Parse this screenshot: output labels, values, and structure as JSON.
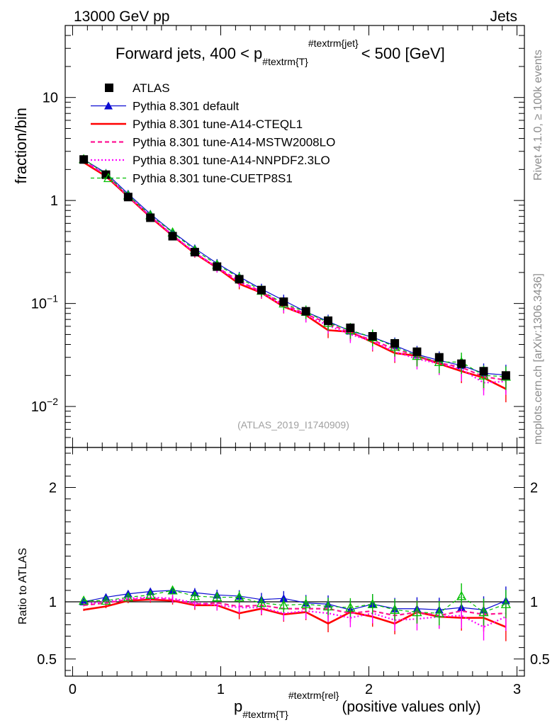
{
  "header": {
    "energy": "13000 GeV pp",
    "process": "Jets"
  },
  "side_labels": {
    "rivet": "Rivet 4.1.0, ≥ 100k events",
    "mcplots": "mcplots.cern.ch [arXiv:1306.3436]"
  },
  "chart_data": {
    "type": "line",
    "title_parts": {
      "prefix": "Forward jets, 400 < p",
      "sub": "#textrm{T}",
      "sup": "#textrm{jet}",
      "suffix": "< 500 [GeV]"
    },
    "watermark": "(ATLAS_2019_I1740909)",
    "ylabel": "fraction/bin",
    "ratio_ylabel": "Ratio to ATLAS",
    "xlabel_parts": {
      "p": "p",
      "sub": "#textrm{T}",
      "sup": "#textrm{rel}",
      "suffix": "(positive values only)"
    },
    "xlim": [
      -0.05,
      3.05
    ],
    "ylim_log": [
      0.004,
      50
    ],
    "ratio_ylim": [
      0.35,
      2.35
    ],
    "x_ticks": [
      {
        "v": 0,
        "label": "0"
      },
      {
        "v": 1,
        "label": "1"
      },
      {
        "v": 2,
        "label": "2"
      },
      {
        "v": 3,
        "label": "3"
      }
    ],
    "y_ticks": [
      {
        "v": 0.01,
        "base": "10",
        "exp": "−2"
      },
      {
        "v": 0.1,
        "base": "10",
        "exp": "−1"
      },
      {
        "v": 1,
        "base": "1",
        "exp": ""
      },
      {
        "v": 10,
        "base": "10",
        "exp": ""
      }
    ],
    "ratio_ticks": [
      {
        "v": 0.5,
        "label": "0.5"
      },
      {
        "v": 1,
        "label": "1"
      },
      {
        "v": 2,
        "label": "2"
      }
    ],
    "x": [
      0.075,
      0.225,
      0.375,
      0.525,
      0.675,
      0.825,
      0.975,
      1.125,
      1.275,
      1.425,
      1.575,
      1.725,
      1.875,
      2.025,
      2.175,
      2.325,
      2.475,
      2.625,
      2.775,
      2.925
    ],
    "data": {
      "name": "ATLAS",
      "values": [
        2.5,
        1.78,
        1.08,
        0.68,
        0.45,
        0.315,
        0.228,
        0.172,
        0.135,
        0.104,
        0.084,
        0.068,
        0.058,
        0.048,
        0.041,
        0.034,
        0.03,
        0.026,
        0.022,
        0.02
      ]
    },
    "series": [
      {
        "name": "Pythia 8.301 default",
        "color": "#0b0bd2",
        "dash": "",
        "width": 1.2,
        "marker": "triangle",
        "values": [
          2.5,
          1.85,
          1.16,
          0.74,
          0.495,
          0.342,
          0.245,
          0.182,
          0.138,
          0.107,
          0.083,
          0.067,
          0.054,
          0.047,
          0.039,
          0.032,
          0.028,
          0.025,
          0.021,
          0.0202
        ],
        "ratio": [
          1.0,
          1.04,
          1.07,
          1.09,
          1.1,
          1.08,
          1.06,
          1.05,
          1.02,
          1.03,
          0.99,
          0.98,
          0.93,
          0.98,
          0.94,
          0.94,
          0.93,
          0.95,
          0.93,
          1.01
        ]
      },
      {
        "name": "Pythia 8.301 tune-A14-CTEQL1",
        "color": "#ff0000",
        "dash": "",
        "width": 2.6,
        "marker": "none",
        "values": [
          2.34,
          1.72,
          1.09,
          0.69,
          0.455,
          0.306,
          0.222,
          0.155,
          0.127,
          0.093,
          0.077,
          0.055,
          0.053,
          0.042,
          0.033,
          0.031,
          0.026,
          0.022,
          0.019,
          0.0148
        ],
        "ratio": [
          0.93,
          0.96,
          1.01,
          1.02,
          1.01,
          0.97,
          0.97,
          0.9,
          0.94,
          0.89,
          0.91,
          0.81,
          0.91,
          0.87,
          0.81,
          0.91,
          0.87,
          0.86,
          0.86,
          0.78
        ]
      },
      {
        "name": "Pythia 8.301 tune-A14-MSTW2008LO",
        "color": "#ff1493",
        "dash": "6,4",
        "width": 2.2,
        "marker": "none",
        "values": [
          2.42,
          1.76,
          1.1,
          0.7,
          0.46,
          0.31,
          0.225,
          0.165,
          0.13,
          0.098,
          0.079,
          0.064,
          0.052,
          0.044,
          0.036,
          0.031,
          0.0265,
          0.024,
          0.0195,
          0.018
        ],
        "ratio": [
          0.97,
          0.99,
          1.02,
          1.03,
          1.02,
          0.98,
          0.99,
          0.96,
          0.97,
          0.94,
          0.94,
          0.94,
          0.9,
          0.92,
          0.88,
          0.91,
          0.88,
          0.92,
          0.89,
          0.9
        ]
      },
      {
        "name": "Pythia 8.301 tune-A14-NNPDF2.3LO",
        "color": "#ff00ff",
        "dash": "2,3",
        "width": 2.2,
        "marker": "none",
        "values": [
          2.46,
          1.78,
          1.11,
          0.705,
          0.462,
          0.312,
          0.222,
          0.163,
          0.128,
          0.094,
          0.077,
          0.061,
          0.05,
          0.043,
          0.034,
          0.029,
          0.026,
          0.023,
          0.017,
          0.0175
        ],
        "ratio": [
          0.98,
          1.0,
          1.03,
          1.04,
          1.03,
          0.99,
          0.97,
          0.95,
          0.95,
          0.9,
          0.92,
          0.9,
          0.86,
          0.9,
          0.84,
          0.85,
          0.87,
          0.88,
          0.78,
          0.87
        ]
      },
      {
        "name": "Pythia 8.301 tune-CUETP8S1",
        "color": "#00c000",
        "dash": "5,4",
        "width": 1.2,
        "marker": "triangle-open",
        "values": [
          2.52,
          1.8,
          1.12,
          0.72,
          0.49,
          0.33,
          0.238,
          0.178,
          0.133,
          0.1,
          0.083,
          0.065,
          0.055,
          0.047,
          0.038,
          0.031,
          0.027,
          0.027,
          0.02,
          0.0195
        ],
        "ratio": [
          1.01,
          1.01,
          1.04,
          1.06,
          1.1,
          1.05,
          1.04,
          1.04,
          0.99,
          0.97,
          0.98,
          0.96,
          0.95,
          0.98,
          0.93,
          0.91,
          0.9,
          1.05,
          0.91,
          0.98
        ]
      }
    ]
  }
}
